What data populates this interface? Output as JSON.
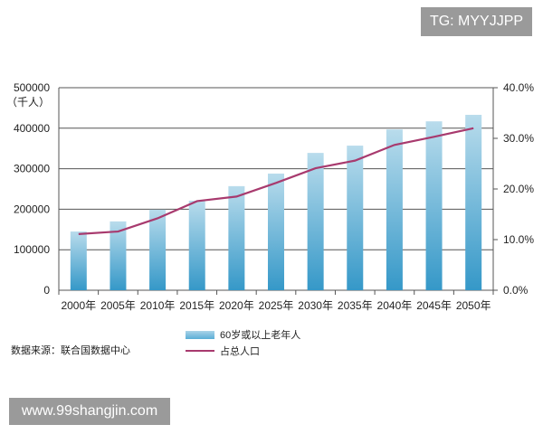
{
  "watermark_top": "TG: MYYJJPP",
  "watermark_bottom": "www.99shangjin.com",
  "source": "数据来源：联合国数据中心",
  "colors": {
    "bar_top": "#b9dcec",
    "bar_bottom": "#3598c8",
    "line": "#a83a6e",
    "grid": "#555555"
  },
  "chart_data": {
    "type": "bar+line",
    "categories": [
      "2000年",
      "2005年",
      "2010年",
      "2015年",
      "2020年",
      "2025年",
      "2030年",
      "2035年",
      "2040年",
      "2045年",
      "2050年"
    ],
    "left_axis": {
      "unit_label": "（千人）",
      "range": [
        0,
        500000
      ],
      "ticks": [
        "0",
        "100000",
        "200000",
        "300000",
        "400000",
        "500000"
      ]
    },
    "right_axis": {
      "range": [
        0,
        40
      ],
      "ticks": [
        "0.0%",
        "10.0%",
        "20.0%",
        "30.0%",
        "40.0%"
      ]
    },
    "grid": true,
    "legend_placement": "bottom",
    "series": [
      {
        "name": "60岁或以上老年人",
        "type": "bar",
        "axis": "left",
        "values": [
          145000,
          170000,
          199000,
          221000,
          257000,
          288000,
          339000,
          357000,
          397000,
          417000,
          433000
        ]
      },
      {
        "name": "占总人口",
        "type": "line",
        "axis": "right",
        "values": [
          11.1,
          11.6,
          14.2,
          17.6,
          18.5,
          21.2,
          24.1,
          25.6,
          28.7,
          30.3,
          32.0
        ]
      }
    ]
  }
}
